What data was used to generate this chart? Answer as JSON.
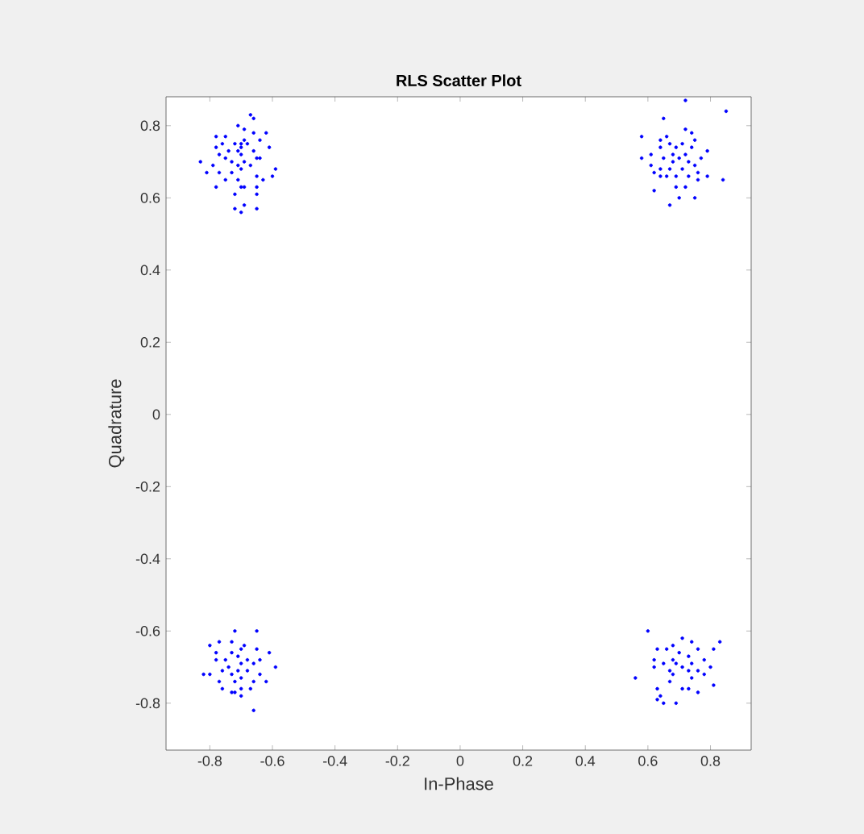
{
  "chart_data": {
    "type": "scatter",
    "title": "RLS Scatter Plot",
    "xlabel": "In-Phase",
    "ylabel": "Quadrature",
    "xlim": [
      -0.94,
      0.93
    ],
    "ylim": [
      -0.93,
      0.88
    ],
    "xticks": [
      -0.8,
      -0.6,
      -0.4,
      -0.2,
      0,
      0.2,
      0.4,
      0.6,
      0.8
    ],
    "yticks": [
      -0.8,
      -0.6,
      -0.4,
      -0.2,
      0,
      0.2,
      0.4,
      0.6,
      0.8
    ],
    "grid": false,
    "marker": "circle",
    "series": [
      {
        "color": "#0000ff",
        "x": [
          -0.67,
          -0.66,
          -0.71,
          -0.69,
          -0.62,
          -0.66,
          -0.78,
          -0.75,
          -0.69,
          -0.64,
          -0.76,
          -0.7,
          -0.68,
          -0.78,
          -0.72,
          -0.7,
          -0.61,
          -0.74,
          -0.71,
          -0.66,
          -0.77,
          -0.75,
          -0.7,
          -0.65,
          -0.64,
          -0.83,
          -0.73,
          -0.69,
          -0.79,
          -0.71,
          -0.67,
          -0.59,
          -0.81,
          -0.77,
          -0.73,
          -0.7,
          -0.65,
          -0.6,
          -0.75,
          -0.71,
          -0.63,
          -0.65,
          -0.78,
          -0.7,
          -0.69,
          -0.72,
          -0.65,
          -0.69,
          -0.72,
          -0.7,
          -0.65,
          0.72,
          0.85,
          0.65,
          0.58,
          0.66,
          0.72,
          0.74,
          0.64,
          0.75,
          0.67,
          0.71,
          0.69,
          0.74,
          0.64,
          0.79,
          0.68,
          0.72,
          0.58,
          0.61,
          0.7,
          0.77,
          0.65,
          0.68,
          0.73,
          0.61,
          0.75,
          0.67,
          0.71,
          0.64,
          0.62,
          0.76,
          0.69,
          0.73,
          0.79,
          0.64,
          0.66,
          0.84,
          0.76,
          0.69,
          0.62,
          0.72,
          0.7,
          0.75,
          0.67,
          -0.72,
          -0.65,
          -0.77,
          -0.73,
          -0.8,
          -0.69,
          -0.65,
          -0.7,
          -0.78,
          -0.73,
          -0.61,
          -0.71,
          -0.75,
          -0.68,
          -0.64,
          -0.78,
          -0.7,
          -0.59,
          -0.74,
          -0.66,
          -0.76,
          -0.71,
          -0.68,
          -0.82,
          -0.8,
          -0.73,
          -0.64,
          -0.7,
          -0.77,
          -0.72,
          -0.66,
          -0.62,
          -0.76,
          -0.7,
          -0.67,
          -0.73,
          -0.72,
          -0.7,
          -0.66,
          0.6,
          0.71,
          0.74,
          0.83,
          0.68,
          0.81,
          0.63,
          0.66,
          0.76,
          0.7,
          0.73,
          0.62,
          0.68,
          0.78,
          0.65,
          0.69,
          0.74,
          0.8,
          0.62,
          0.71,
          0.73,
          0.76,
          0.67,
          0.56,
          0.68,
          0.78,
          0.74,
          0.67,
          0.81,
          0.63,
          0.71,
          0.73,
          0.76,
          0.64,
          0.63,
          0.65,
          0.69
        ],
        "values": [
          0.83,
          0.82,
          0.8,
          0.79,
          0.78,
          0.78,
          0.77,
          0.77,
          0.76,
          0.76,
          0.75,
          0.75,
          0.75,
          0.74,
          0.75,
          0.74,
          0.74,
          0.73,
          0.73,
          0.73,
          0.72,
          0.71,
          0.72,
          0.71,
          0.71,
          0.7,
          0.7,
          0.7,
          0.69,
          0.69,
          0.69,
          0.68,
          0.67,
          0.67,
          0.67,
          0.68,
          0.66,
          0.66,
          0.65,
          0.65,
          0.65,
          0.63,
          0.63,
          0.63,
          0.63,
          0.61,
          0.61,
          0.58,
          0.57,
          0.56,
          0.57,
          0.87,
          0.84,
          0.82,
          0.77,
          0.77,
          0.79,
          0.78,
          0.76,
          0.76,
          0.75,
          0.75,
          0.74,
          0.74,
          0.74,
          0.73,
          0.72,
          0.72,
          0.71,
          0.72,
          0.71,
          0.71,
          0.71,
          0.7,
          0.7,
          0.69,
          0.69,
          0.68,
          0.68,
          0.68,
          0.67,
          0.67,
          0.66,
          0.66,
          0.66,
          0.66,
          0.66,
          0.65,
          0.65,
          0.63,
          0.62,
          0.63,
          0.6,
          0.6,
          0.58,
          -0.6,
          -0.6,
          -0.63,
          -0.63,
          -0.64,
          -0.64,
          -0.65,
          -0.65,
          -0.66,
          -0.66,
          -0.66,
          -0.67,
          -0.68,
          -0.68,
          -0.68,
          -0.68,
          -0.69,
          -0.7,
          -0.7,
          -0.69,
          -0.71,
          -0.71,
          -0.71,
          -0.72,
          -0.72,
          -0.72,
          -0.72,
          -0.73,
          -0.74,
          -0.74,
          -0.74,
          -0.74,
          -0.76,
          -0.76,
          -0.76,
          -0.77,
          -0.77,
          -0.78,
          -0.82,
          -0.6,
          -0.62,
          -0.63,
          -0.63,
          -0.64,
          -0.65,
          -0.65,
          -0.65,
          -0.65,
          -0.66,
          -0.67,
          -0.68,
          -0.68,
          -0.68,
          -0.69,
          -0.69,
          -0.69,
          -0.7,
          -0.7,
          -0.7,
          -0.71,
          -0.71,
          -0.71,
          -0.73,
          -0.72,
          -0.72,
          -0.73,
          -0.74,
          -0.75,
          -0.76,
          -0.76,
          -0.76,
          -0.77,
          -0.78,
          -0.79,
          -0.8,
          -0.8
        ]
      }
    ]
  }
}
